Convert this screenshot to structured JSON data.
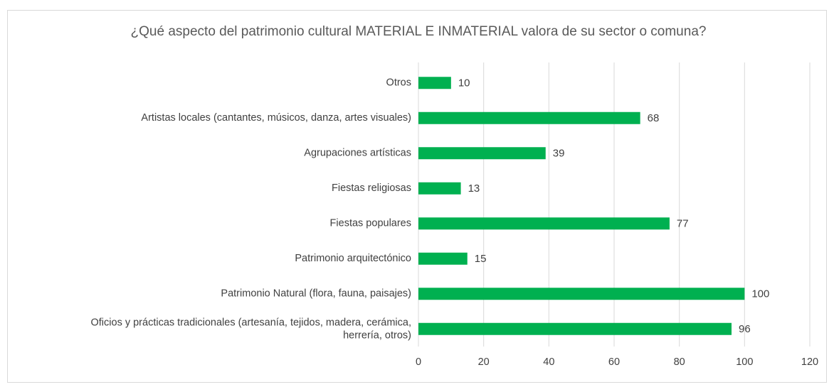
{
  "chart_data": {
    "type": "bar",
    "orientation": "horizontal",
    "title": "¿Qué aspecto del patrimonio cultural MATERIAL E INMATERIAL  valora de su sector o comuna?",
    "categories": [
      "Otros",
      "Artistas locales (cantantes, músicos, danza, artes visuales)",
      "Agrupaciones artísticas",
      "Fiestas religiosas",
      "Fiestas populares",
      "Patrimonio arquitectónico",
      "Patrimonio Natural (flora, fauna, paisajes)",
      "Oficios y prácticas tradicionales (artesanía, tejidos, madera, cerámica,\nherrería, otros)"
    ],
    "values": [
      10,
      68,
      39,
      13,
      77,
      15,
      100,
      96
    ],
    "color": "#00b050",
    "xlim": [
      0,
      120
    ],
    "xticks": [
      0,
      20,
      40,
      60,
      80,
      100,
      120
    ],
    "grid": true
  }
}
